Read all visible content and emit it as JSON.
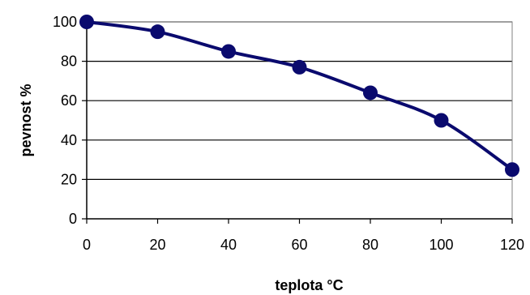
{
  "chart_data": {
    "type": "line",
    "title": "",
    "xlabel": "teplota °C",
    "ylabel": "pevnost  %",
    "x": [
      0,
      20,
      40,
      60,
      80,
      100,
      120
    ],
    "series": [
      {
        "values": [
          100,
          95,
          85,
          77,
          64,
          50,
          25
        ]
      }
    ],
    "xlim": [
      0,
      120
    ],
    "ylim": [
      0,
      100
    ],
    "x_ticks": [
      0,
      20,
      40,
      60,
      80,
      100,
      120
    ],
    "y_ticks": [
      0,
      20,
      40,
      60,
      80,
      100
    ],
    "grid": "horizontal",
    "legend": "none",
    "colors": {
      "line": "#0a0a6e",
      "marker": "#0a0a6e",
      "grid": "#000000",
      "plot_border": "#808080"
    },
    "smooth": true
  }
}
